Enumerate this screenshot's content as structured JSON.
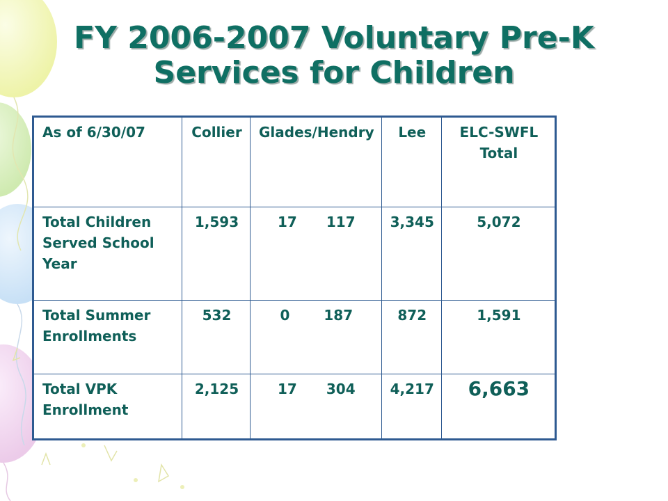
{
  "title": {
    "line1": "FY 2006-2007 Voluntary Pre-K",
    "line2": "Services for Children"
  },
  "table": {
    "headers": {
      "as_of": "As of 6/30/07",
      "collier": "Collier",
      "glades_hendry": "Glades/Hendry",
      "lee": "Lee",
      "elc_total": "ELC-SWFL Total"
    },
    "rows": [
      {
        "label": "Total Children Served School Year",
        "collier": "1,593",
        "glades": "17",
        "hendry": "117",
        "lee": "3,345",
        "total": "5,072"
      },
      {
        "label": "Total Summer Enrollments",
        "collier": "532",
        "glades": "0",
        "hendry": "187",
        "lee": "872",
        "total": "1,591"
      },
      {
        "label": "Total VPK Enrollment",
        "collier": "2,125",
        "glades": "17",
        "hendry": "304",
        "lee": "4,217",
        "total": "6,663"
      }
    ]
  },
  "colors": {
    "title": "#0f6f63",
    "table_text": "#0f5f58",
    "table_border": "#2e5a91"
  }
}
